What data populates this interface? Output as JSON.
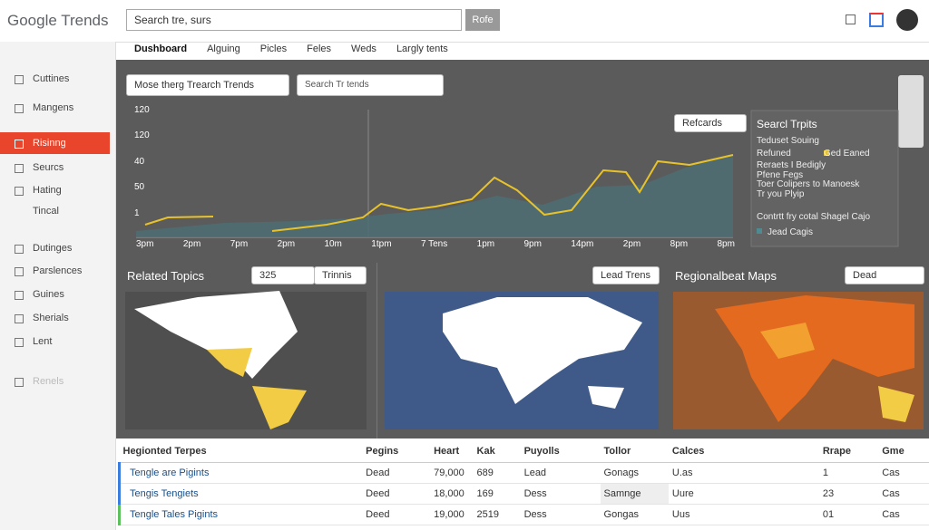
{
  "header": {
    "logo": "Google Trends",
    "search": "Search tre, surs",
    "button": "Rofe"
  },
  "tabs": [
    "Dushboard",
    "Alguing",
    "Picles",
    "Feles",
    "Weds",
    "Largly tents"
  ],
  "sidebar": [
    "Cuttines",
    "Mangens",
    "Risinng",
    "Seurcs",
    "Hating",
    "Tincal",
    "Dutinges",
    "Parslences",
    "Guines",
    "Sherials",
    "Lent",
    "Renels"
  ],
  "toolbar": {
    "dropdown1": "Mose therg Trearch Trends",
    "dropdown2": "Search Tr tends",
    "refresh": "Refcards"
  },
  "chart": {
    "ylabels": [
      "120",
      "120",
      "40",
      "50",
      "1"
    ],
    "xlabels": [
      "3pm",
      "2pm",
      "7pm",
      "2pm",
      "10m",
      "1tpm",
      "7 Tens",
      "1pm",
      "9pm",
      "14pm",
      "2pm",
      "8pm",
      "8pm"
    ]
  },
  "legend": {
    "title": "Searcl Trpits",
    "items": [
      "Teduset Souing",
      "Refuned",
      "Ged Eaned",
      "Reraets I Bedigly",
      "Pfene Fegs",
      "Toer Colipers to Manoesk",
      "Tr you Plyip",
      "Contrtt fry cotal Shagel Cajo",
      "Jead Cagis"
    ]
  },
  "maps": {
    "related": "Related Topics",
    "input": "325",
    "select1": "Trinnis",
    "select2": "Lead Trens",
    "regional": "Regionalbeat Maps",
    "select3": "Dead"
  },
  "table": {
    "headers": [
      "Hegionted Terpes",
      "Pegins",
      "Heart",
      "Kak",
      "Puyolls",
      "Tollor",
      "Calces",
      "Rrape",
      "Gme"
    ],
    "rows": [
      [
        "Tengle are Pigints",
        "Dead",
        "79,000",
        "689",
        "Lead",
        "Gonags",
        "U.as",
        "1",
        "Cas"
      ],
      [
        "Tengis Tengiets",
        "Deed",
        "18,000",
        "169",
        "Dess",
        "Samnge",
        "Uure",
        "23",
        "Cas"
      ],
      [
        "Tengle Tales Pigints",
        "Deed",
        "19,000",
        "2519",
        "Dess",
        "Gongas",
        "Uus",
        "01",
        "Cas"
      ]
    ]
  }
}
